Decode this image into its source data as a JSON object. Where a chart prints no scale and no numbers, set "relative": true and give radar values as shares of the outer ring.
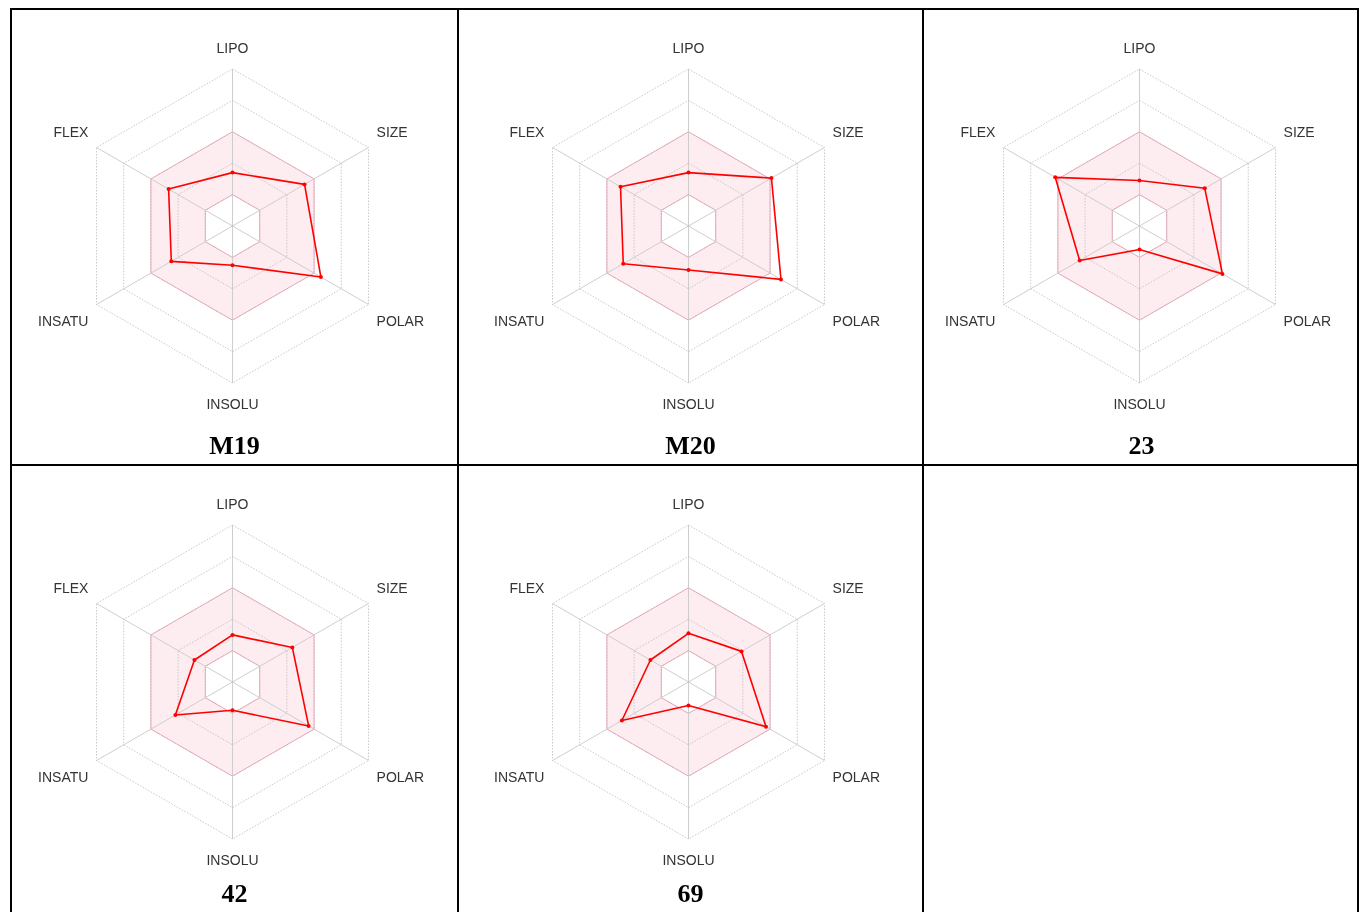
{
  "chart_data": [
    {
      "type": "radar",
      "title": "M19",
      "categories": [
        "LIPO",
        "SIZE",
        "POLAR",
        "INSOLU",
        "INSATU",
        "FLEX"
      ],
      "relative": true,
      "grid": true,
      "marker": "circle",
      "series": [
        {
          "color": "#ff0000",
          "values": [
            0.34,
            0.53,
            0.65,
            0.25,
            0.45,
            0.47
          ]
        }
      ]
    },
    {
      "type": "radar",
      "title": "M20",
      "categories": [
        "LIPO",
        "SIZE",
        "POLAR",
        "INSOLU",
        "INSATU",
        "FLEX"
      ],
      "relative": true,
      "grid": true,
      "marker": "circle",
      "series": [
        {
          "color": "#ff0000",
          "values": [
            0.34,
            0.61,
            0.68,
            0.28,
            0.48,
            0.5
          ]
        }
      ]
    },
    {
      "type": "radar",
      "title": "23",
      "categories": [
        "LIPO",
        "SIZE",
        "POLAR",
        "INSOLU",
        "INSATU",
        "FLEX"
      ],
      "relative": true,
      "grid": true,
      "marker": "circle",
      "series": [
        {
          "color": "#ff0000",
          "values": [
            0.29,
            0.48,
            0.61,
            0.15,
            0.44,
            0.62
          ]
        }
      ]
    },
    {
      "type": "radar",
      "title": "42",
      "categories": [
        "LIPO",
        "SIZE",
        "POLAR",
        "INSOLU",
        "INSATU",
        "FLEX"
      ],
      "relative": true,
      "grid": true,
      "marker": "circle",
      "series": [
        {
          "color": "#ff0000",
          "values": [
            0.3,
            0.44,
            0.56,
            0.18,
            0.42,
            0.28
          ]
        }
      ]
    },
    {
      "type": "radar",
      "title": "69",
      "categories": [
        "LIPO",
        "SIZE",
        "POLAR",
        "INSOLU",
        "INSATU",
        "FLEX"
      ],
      "relative": true,
      "grid": true,
      "marker": "circle",
      "series": [
        {
          "color": "#ff0000",
          "values": [
            0.31,
            0.39,
            0.57,
            0.15,
            0.49,
            0.28
          ]
        }
      ]
    }
  ]
}
